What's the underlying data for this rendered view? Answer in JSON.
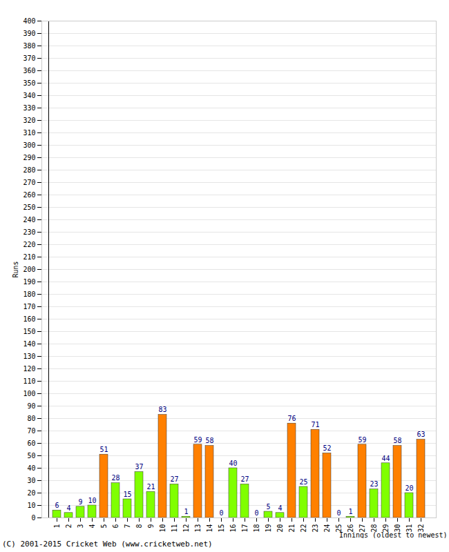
{
  "chart_data": {
    "type": "bar",
    "x_label": "Innings (oldest to newest)",
    "y_label": "Runs",
    "caption": "(C) 2001-2015 Cricket Web (www.cricketweb.net)",
    "categories": [
      "1",
      "2",
      "3",
      "4",
      "5",
      "6",
      "7",
      "8",
      "9",
      "10",
      "11",
      "12",
      "13",
      "14",
      "15",
      "16",
      "17",
      "18",
      "19",
      "20",
      "21",
      "22",
      "23",
      "24",
      "25",
      "26",
      "27",
      "28",
      "29",
      "30",
      "31",
      "32"
    ],
    "values": [
      6,
      4,
      9,
      10,
      51,
      28,
      15,
      37,
      21,
      83,
      27,
      1,
      59,
      58,
      0,
      40,
      27,
      0,
      5,
      4,
      76,
      25,
      71,
      52,
      0,
      1,
      59,
      23,
      44,
      58,
      20,
      63
    ],
    "colors": [
      "#80ff00",
      "#80ff00",
      "#80ff00",
      "#80ff00",
      "#ff8000",
      "#80ff00",
      "#80ff00",
      "#80ff00",
      "#80ff00",
      "#ff8000",
      "#80ff00",
      "#80ff00",
      "#ff8000",
      "#ff8000",
      "#80ff00",
      "#80ff00",
      "#80ff00",
      "#80ff00",
      "#80ff00",
      "#80ff00",
      "#ff8000",
      "#80ff00",
      "#ff8000",
      "#ff8000",
      "#80ff00",
      "#80ff00",
      "#ff8000",
      "#80ff00",
      "#80ff00",
      "#ff8000",
      "#80ff00",
      "#ff8000"
    ],
    "ylim": [
      0,
      400
    ],
    "yticks": [
      0,
      10,
      20,
      30,
      40,
      50,
      60,
      70,
      80,
      90,
      100,
      110,
      120,
      130,
      140,
      150,
      160,
      170,
      180,
      190,
      200,
      210,
      220,
      230,
      240,
      250,
      260,
      270,
      280,
      290,
      300,
      310,
      320,
      330,
      340,
      350,
      360,
      370,
      380,
      390,
      400
    ],
    "grid": true,
    "data_labels": true
  }
}
